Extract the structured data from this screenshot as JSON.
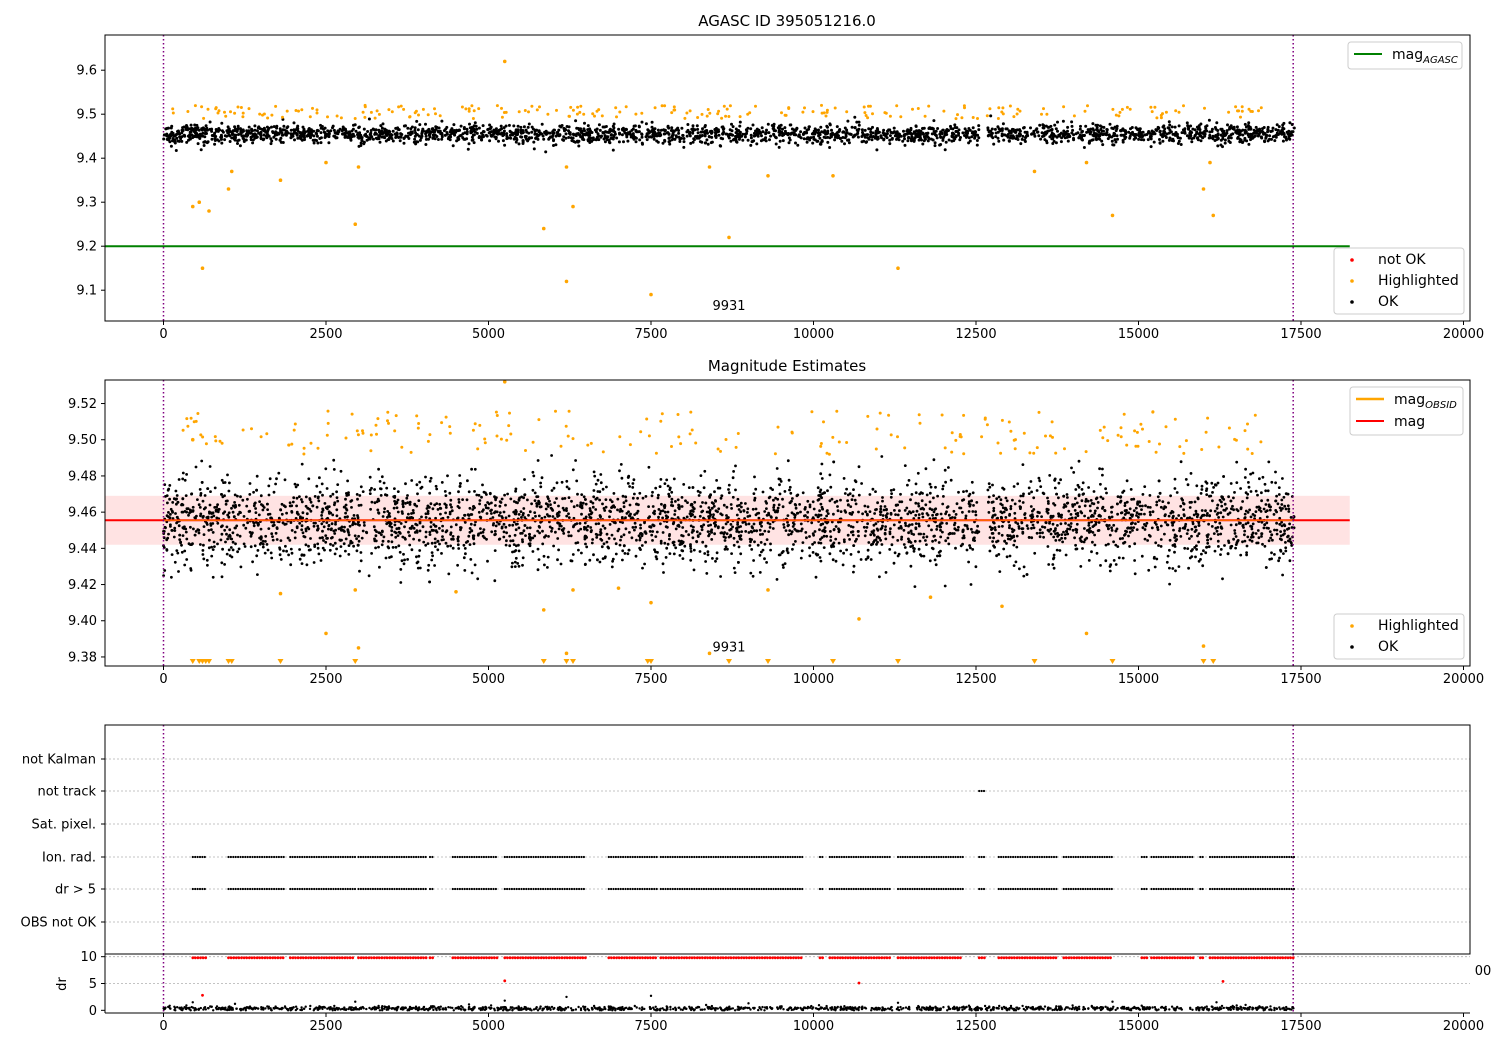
{
  "colors": {
    "agasc_line": "#008000",
    "obsid_line": "#FFA500",
    "mag_line": "#FF0000",
    "ok": "#000000",
    "highlighted": "#FFA500",
    "not_ok": "#FF0000",
    "band_fill": "#FFC0C0",
    "obs_boundary": "#800080",
    "grid": "#b0b0b0"
  },
  "chart_data": [
    {
      "id": "agasc_panel",
      "type": "scatter",
      "title": "AGASC ID 395051216.0",
      "xlim": [
        -900,
        20100
      ],
      "ylim": [
        9.03,
        9.68
      ],
      "xticks": [
        0,
        2500,
        5000,
        7500,
        10000,
        12500,
        15000,
        17500,
        20000
      ],
      "xtick_labels": [
        "0",
        "2500",
        "5000",
        "7500",
        "10000",
        "12500",
        "15000",
        "17500",
        "20000"
      ],
      "yticks": [
        9.1,
        9.2,
        9.3,
        9.4,
        9.5,
        9.6
      ],
      "ytick_labels": [
        "9.1",
        "9.2",
        "9.3",
        "9.4",
        "9.5",
        "9.6"
      ],
      "ok_band": {
        "x_range": [
          0,
          17400
        ],
        "center": 9.455,
        "spread": 0.018
      },
      "mag_agasc": {
        "name": "mag_AGASC",
        "value": 9.2,
        "x_range": [
          -900,
          18250
        ]
      },
      "obs_boundaries": [
        0,
        17380
      ],
      "obsid_labels": [
        {
          "text": "9931",
          "x": 8700,
          "y": 9.055
        }
      ],
      "highlighted_points": [
        [
          450,
          9.29
        ],
        [
          550,
          9.3
        ],
        [
          600,
          9.15
        ],
        [
          700,
          9.28
        ],
        [
          1000,
          9.33
        ],
        [
          1050,
          9.37
        ],
        [
          1800,
          9.35
        ],
        [
          2500,
          9.39
        ],
        [
          2950,
          9.25
        ],
        [
          3000,
          9.38
        ],
        [
          5250,
          9.62
        ],
        [
          5850,
          9.24
        ],
        [
          6200,
          9.38
        ],
        [
          6200,
          9.12
        ],
        [
          6300,
          9.29
        ],
        [
          7500,
          9.09
        ],
        [
          8400,
          9.38
        ],
        [
          8700,
          9.22
        ],
        [
          9300,
          9.36
        ],
        [
          10300,
          9.36
        ],
        [
          11300,
          9.15
        ],
        [
          13400,
          9.37
        ],
        [
          14200,
          9.39
        ],
        [
          14600,
          9.27
        ],
        [
          16000,
          9.33
        ],
        [
          16100,
          9.39
        ],
        [
          16150,
          9.27
        ]
      ],
      "legends": [
        {
          "position": "top-right",
          "entries": [
            {
              "label_base": "mag",
              "label_sub": "AGASC",
              "kind": "line",
              "color": "#008000"
            }
          ]
        },
        {
          "position": "lower-right",
          "entries": [
            {
              "label": "not OK",
              "kind": "dot",
              "color": "#FF0000"
            },
            {
              "label": "Highlighted",
              "kind": "dot",
              "color": "#FFA500"
            },
            {
              "label": "OK",
              "kind": "dot",
              "color": "#000000"
            }
          ]
        }
      ]
    },
    {
      "id": "mag_panel",
      "type": "scatter",
      "title": "Magnitude Estimates",
      "xlim": [
        -900,
        20100
      ],
      "ylim": [
        9.375,
        9.533
      ],
      "xticks": [
        0,
        2500,
        5000,
        7500,
        10000,
        12500,
        15000,
        17500,
        20000
      ],
      "xtick_labels": [
        "0",
        "2500",
        "5000",
        "7500",
        "10000",
        "12500",
        "15000",
        "17500",
        "20000"
      ],
      "yticks": [
        9.38,
        9.4,
        9.42,
        9.44,
        9.46,
        9.48,
        9.5,
        9.52
      ],
      "ytick_labels": [
        "9.38",
        "9.40",
        "9.42",
        "9.44",
        "9.46",
        "9.48",
        "9.50",
        "9.52"
      ],
      "ok_band": {
        "x_range": [
          0,
          17400
        ],
        "center": 9.455,
        "spread": 0.012
      },
      "mag": {
        "name": "mag",
        "value": 9.4555,
        "x_range": [
          -900,
          18250
        ],
        "band": [
          9.442,
          9.469
        ]
      },
      "mag_obsid": {
        "name": "mag_OBSID",
        "value": 9.4555,
        "x_range": [
          0,
          17380
        ]
      },
      "obs_boundaries": [
        0,
        17380
      ],
      "obsid_labels": [
        {
          "text": "9931",
          "x": 8700,
          "y": 9.383
        }
      ],
      "highlighted_points": [
        [
          450,
          9.5
        ],
        [
          1800,
          9.415
        ],
        [
          2500,
          9.393
        ],
        [
          2950,
          9.417
        ],
        [
          3000,
          9.385
        ],
        [
          4500,
          9.416
        ],
        [
          5250,
          9.532
        ],
        [
          5850,
          9.406
        ],
        [
          6200,
          9.382
        ],
        [
          6300,
          9.417
        ],
        [
          7000,
          9.418
        ],
        [
          7500,
          9.41
        ],
        [
          8400,
          9.382
        ],
        [
          9300,
          9.417
        ],
        [
          10700,
          9.401
        ],
        [
          11800,
          9.413
        ],
        [
          12900,
          9.408
        ],
        [
          14200,
          9.393
        ],
        [
          16000,
          9.386
        ]
      ],
      "highlighted_offscale": [
        450,
        550,
        600,
        650,
        700,
        1000,
        1050,
        1800,
        2950,
        5850,
        6200,
        6300,
        7450,
        7500,
        8700,
        9300,
        10300,
        11300,
        13400,
        14600,
        16000,
        16150
      ],
      "legends": [
        {
          "position": "top-right",
          "entries": [
            {
              "label_base": "mag",
              "label_sub": "OBSID",
              "kind": "line",
              "color": "#FFA500"
            },
            {
              "label": "mag",
              "kind": "line",
              "color": "#FF0000"
            }
          ]
        },
        {
          "position": "lower-right",
          "entries": [
            {
              "label": "Highlighted",
              "kind": "dot",
              "color": "#FFA500"
            },
            {
              "label": "OK",
              "kind": "dot",
              "color": "#000000"
            }
          ]
        }
      ]
    },
    {
      "id": "flags_panel",
      "type": "scatter",
      "xlim": [
        -900,
        20100
      ],
      "categories": [
        "not Kalman",
        "not track",
        "Sat. pixel.",
        "Ion. rad.",
        "dr > 5",
        "OBS not OK"
      ],
      "obs_boundaries": [
        0,
        17380
      ],
      "not_track_segments": [
        [
          12550,
          12650
        ]
      ],
      "ion_rad_segments": [
        [
          450,
          650
        ],
        [
          1000,
          1850
        ],
        [
          1950,
          2950
        ],
        [
          3000,
          4050
        ],
        [
          4100,
          4150
        ],
        [
          4450,
          5150
        ],
        [
          5250,
          6500
        ],
        [
          6850,
          7600
        ],
        [
          7650,
          9850
        ],
        [
          10100,
          10150
        ],
        [
          10250,
          11200
        ],
        [
          11300,
          12300
        ],
        [
          12550,
          12650
        ],
        [
          12850,
          13750
        ],
        [
          13850,
          14600
        ],
        [
          15050,
          15150
        ],
        [
          15200,
          15850
        ],
        [
          15950,
          16000
        ],
        [
          16100,
          17400
        ]
      ],
      "dr5_segments": [
        [
          450,
          650
        ],
        [
          1000,
          1850
        ],
        [
          1950,
          2950
        ],
        [
          3000,
          4050
        ],
        [
          4100,
          4150
        ],
        [
          4450,
          5150
        ],
        [
          5250,
          6500
        ],
        [
          6850,
          7600
        ],
        [
          7650,
          9850
        ],
        [
          10100,
          10150
        ],
        [
          10250,
          11200
        ],
        [
          11300,
          12300
        ],
        [
          12550,
          12650
        ],
        [
          12850,
          13750
        ],
        [
          13850,
          14600
        ],
        [
          15050,
          15150
        ],
        [
          15200,
          15850
        ],
        [
          15950,
          16000
        ],
        [
          16100,
          17400
        ]
      ]
    },
    {
      "id": "dr_panel",
      "type": "scatter",
      "ylabel": "dr",
      "xlim": [
        -900,
        20100
      ],
      "ylim": [
        -0.5,
        10.5
      ],
      "xticks": [
        0,
        2500,
        5000,
        7500,
        10000,
        12500,
        15000,
        17500,
        20000
      ],
      "xtick_labels": [
        "0",
        "2500",
        "5000",
        "7500",
        "10000",
        "12500",
        "15000",
        "17500",
        "20000"
      ],
      "yticks": [
        0,
        5,
        10
      ],
      "ytick_labels": [
        "0",
        "5",
        "10"
      ],
      "clipped_x_label": "00",
      "obs_boundaries": [
        0,
        17380
      ],
      "dr_clipped_segments": [
        [
          450,
          650
        ],
        [
          1000,
          1850
        ],
        [
          1950,
          2950
        ],
        [
          3000,
          4050
        ],
        [
          4100,
          4150
        ],
        [
          4450,
          5150
        ],
        [
          5250,
          6500
        ],
        [
          6850,
          7600
        ],
        [
          7650,
          9850
        ],
        [
          10100,
          10150
        ],
        [
          10250,
          11200
        ],
        [
          11300,
          12300
        ],
        [
          12550,
          12650
        ],
        [
          12850,
          13750
        ],
        [
          13850,
          14600
        ],
        [
          15050,
          15150
        ],
        [
          15200,
          15850
        ],
        [
          15950,
          16000
        ],
        [
          16100,
          17400
        ]
      ],
      "dr_red_points": [
        [
          600,
          2.8
        ],
        [
          5250,
          5.5
        ],
        [
          10700,
          5.1
        ],
        [
          16300,
          5.4
        ]
      ],
      "dr_outlier_points": [
        [
          450,
          1.5
        ],
        [
          1100,
          1.2
        ],
        [
          2950,
          1.6
        ],
        [
          4700,
          1.1
        ],
        [
          5250,
          1.8
        ],
        [
          6200,
          2.5
        ],
        [
          7500,
          2.7
        ],
        [
          9000,
          1.3
        ],
        [
          11300,
          1.4
        ],
        [
          14600,
          1.6
        ],
        [
          16200,
          1.5
        ]
      ],
      "dr_baseline": {
        "x_range": [
          0,
          17400
        ],
        "center": 0.35,
        "spread": 0.2
      }
    }
  ]
}
